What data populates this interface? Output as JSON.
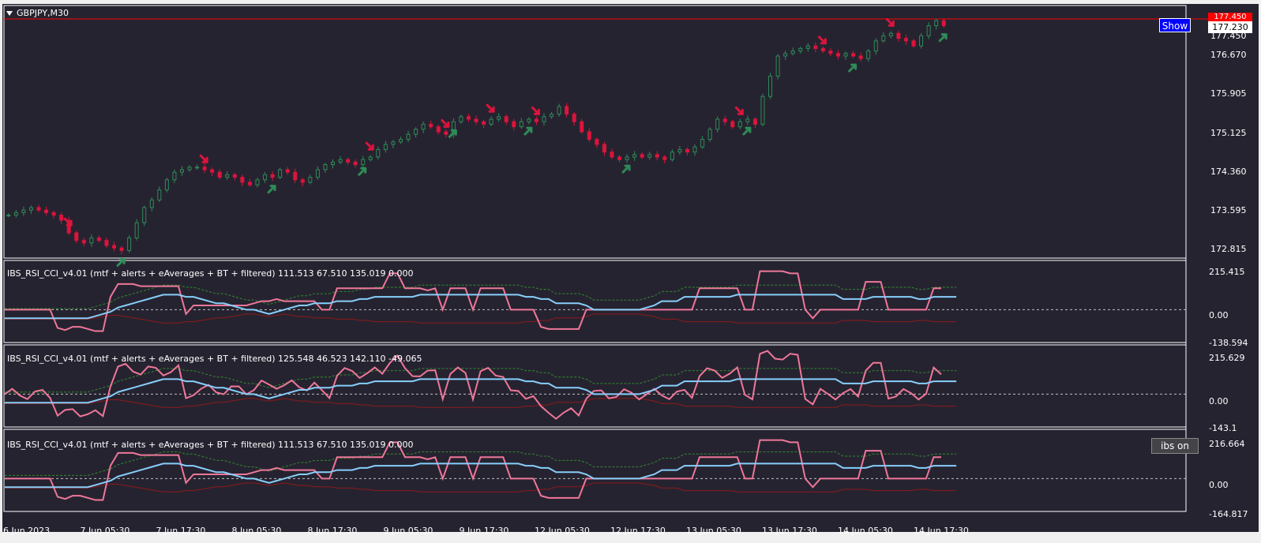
{
  "window": {
    "title": "GBPJPY,M30",
    "show_button_label": "Show",
    "ibs_button_label": "ibs on",
    "current_price": "177.230",
    "current_price_top": "177.450"
  },
  "main_chart": {
    "price_ticks": [
      "177.450",
      "176.670",
      "175.905",
      "175.125",
      "174.360",
      "173.595",
      "172.815"
    ]
  },
  "time_axis": {
    "labels": [
      "6 Jun 2023",
      "7 Jun 05:30",
      "7 Jun 17:30",
      "8 Jun 05:30",
      "8 Jun 17:30",
      "9 Jun 05:30",
      "9 Jun 17:30",
      "12 Jun 05:30",
      "12 Jun 17:30",
      "13 Jun 05:30",
      "13 Jun 17:30",
      "14 Jun 05:30",
      "14 Jun 17:30"
    ]
  },
  "indicators": [
    {
      "label": "IBS_RSI_CCI_v4.01 (mtf + alerts + eAverages + BT + filtered) 111.513 67.510 135.019 0.000",
      "ticks": [
        "215.415",
        "0.00",
        "-138.594"
      ]
    },
    {
      "label": "IBS_RSI_CCI_v4.01 (mtf + alerts + eAverages + BT + filtered) 125.548 46.523 142.110 -49.065",
      "ticks": [
        "215.629",
        "0.00",
        "-143.1"
      ]
    },
    {
      "label": "IBS_RSI_CCI_v4.01 (mtf + alerts + eAverages + BT + filtered) 111.513 67.510 135.019 0.000",
      "ticks": [
        "216.664",
        "0.00",
        "-164.817"
      ]
    }
  ],
  "colors": {
    "background": "#262330",
    "bull": "#2e8b57",
    "bear": "#dc143c",
    "pink_line": "#ee7799",
    "blue_line": "#87cefa",
    "green_dotted": "#2e8b2e",
    "dark_red": "#8b1a1a",
    "grid": "#c0c0c0"
  },
  "chart_data": [
    {
      "type": "candlestick",
      "title": "GBPJPY,M30",
      "ylim": [
        172.6,
        177.6
      ],
      "close": [
        173.45,
        173.5,
        173.55,
        173.6,
        173.55,
        173.5,
        173.45,
        173.35,
        173.1,
        172.95,
        172.9,
        173.0,
        172.95,
        172.85,
        172.8,
        172.75,
        173.0,
        173.3,
        173.6,
        173.75,
        173.95,
        174.15,
        174.3,
        174.35,
        174.4,
        174.4,
        174.35,
        174.3,
        174.2,
        174.25,
        174.2,
        174.1,
        174.05,
        174.15,
        174.25,
        174.2,
        174.35,
        174.3,
        174.15,
        174.1,
        174.2,
        174.35,
        174.45,
        174.5,
        174.55,
        174.5,
        174.45,
        174.55,
        174.6,
        174.75,
        174.85,
        174.9,
        174.95,
        175.05,
        175.15,
        175.25,
        175.2,
        175.1,
        175.05,
        175.3,
        175.4,
        175.35,
        175.3,
        175.25,
        175.35,
        175.4,
        175.3,
        175.2,
        175.3,
        175.35,
        175.3,
        175.4,
        175.45,
        175.6,
        175.45,
        175.3,
        175.1,
        174.95,
        174.85,
        174.7,
        174.6,
        174.55,
        174.6,
        174.65,
        174.6,
        174.65,
        174.6,
        174.55,
        174.7,
        174.75,
        174.7,
        174.8,
        174.95,
        175.15,
        175.35,
        175.3,
        175.2,
        175.3,
        175.35,
        175.25,
        175.8,
        176.2,
        176.6,
        176.65,
        176.7,
        176.75,
        176.8,
        176.75,
        176.7,
        176.65,
        176.6,
        176.65,
        176.6,
        176.55,
        176.7,
        176.9,
        177.0,
        177.05,
        176.95,
        176.9,
        176.8,
        177.0,
        177.2,
        177.3,
        177.2
      ]
    },
    {
      "type": "line",
      "title": "IBS_RSI_CCI_v4.01 (mtf + alerts + eAverages + BT + filtered) 111.513 67.510 135.019 0.000",
      "ylim": [
        -138.594,
        215.415
      ],
      "series": [
        {
          "name": "",
          "values": [
            0,
            0,
            0,
            0,
            0,
            0,
            0,
            -85,
            -95,
            -80,
            -80,
            -90,
            -100,
            -100,
            60,
            120,
            120,
            120,
            110,
            110,
            110,
            110,
            110,
            110,
            -20,
            20,
            20,
            20,
            20,
            20,
            20,
            20,
            20,
            30,
            40,
            40,
            50,
            40,
            40,
            40,
            40,
            40,
            0,
            0,
            100,
            100,
            100,
            100,
            100,
            100,
            100,
            170,
            170,
            100,
            100,
            100,
            90,
            100,
            0,
            100,
            100,
            100,
            0,
            100,
            100,
            100,
            100,
            0,
            0,
            0,
            0,
            -80,
            -90,
            -90,
            -90,
            -90,
            -90,
            0,
            0,
            0,
            0,
            0,
            0,
            0,
            0,
            0,
            0,
            0,
            0,
            0,
            0,
            0,
            100,
            100,
            100,
            100,
            100,
            100,
            0,
            0,
            180,
            180,
            180,
            180,
            170,
            170,
            0,
            -40,
            0,
            0,
            0,
            0,
            0,
            0,
            130,
            130,
            130,
            0,
            0,
            0,
            0,
            0,
            0,
            100,
            100
          ]
        },
        {
          "name": "",
          "values": [
            -40,
            -40,
            -40,
            -40,
            -40,
            -40,
            -40,
            -40,
            -40,
            -40,
            -40,
            -40,
            -30,
            -20,
            -10,
            10,
            20,
            30,
            40,
            50,
            60,
            70,
            70,
            70,
            60,
            60,
            50,
            40,
            30,
            30,
            20,
            10,
            0,
            0,
            -10,
            -20,
            -10,
            0,
            10,
            20,
            20,
            30,
            30,
            30,
            40,
            40,
            40,
            50,
            50,
            60,
            60,
            60,
            60,
            60,
            60,
            70,
            70,
            70,
            70,
            70,
            70,
            70,
            70,
            70,
            70,
            70,
            70,
            70,
            70,
            60,
            60,
            50,
            50,
            30,
            30,
            30,
            30,
            20,
            0,
            0,
            0,
            0,
            0,
            0,
            0,
            10,
            20,
            40,
            40,
            40,
            60,
            60,
            60,
            60,
            60,
            60,
            60,
            70,
            70,
            70,
            70,
            70,
            70,
            70,
            70,
            70,
            70,
            70,
            70,
            70,
            70,
            50,
            50,
            50,
            50,
            60,
            60,
            60,
            60,
            60,
            60,
            50,
            50,
            60,
            60,
            60,
            60
          ]
        }
      ]
    }
  ]
}
